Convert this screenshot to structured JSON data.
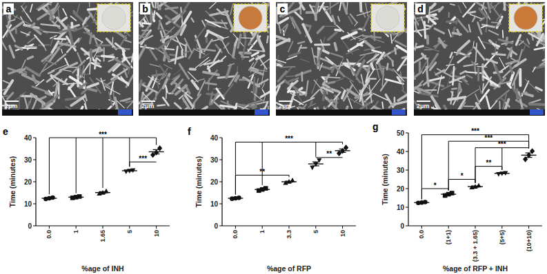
{
  "images": [
    {
      "panel": "a",
      "scale_bar": "2μm",
      "inset_color": "#dcdcd6"
    },
    {
      "panel": "b",
      "scale_bar": "2μm",
      "inset_color": "#c87a3c"
    },
    {
      "panel": "c",
      "scale_bar": "2μm",
      "inset_color": "#dcdcd6"
    },
    {
      "panel": "d",
      "scale_bar": "2μm",
      "inset_color": "#c97a38"
    }
  ],
  "chart_data": [
    {
      "panel": "e",
      "type": "scatter",
      "x_label": "%age of INH",
      "y_label": "Time (minutes)",
      "categories": [
        "0.0",
        "1",
        "1.65",
        "5",
        "10"
      ],
      "points": [
        [
          12.2,
          12.5,
          12.8
        ],
        [
          12.7,
          13.0,
          13.3
        ],
        [
          14.6,
          15.0,
          15.7
        ],
        [
          24.7,
          25.0,
          25.3
        ],
        [
          32.2,
          33.3,
          35.2
        ]
      ],
      "values": [
        12.5,
        13.0,
        15.1,
        25.0,
        33.6
      ],
      "errors": [
        0.2,
        0.2,
        0.4,
        0.2,
        1.0
      ],
      "ylim": [
        0,
        40
      ],
      "yticks": [
        0,
        10,
        20,
        30,
        40
      ],
      "color": "#111111",
      "annotations": [
        {
          "text": "***",
          "indices": [
            0,
            1,
            2,
            3,
            4
          ],
          "y": 40
        },
        {
          "text": "***",
          "indices": [
            3,
            4
          ],
          "y": 29
        }
      ]
    },
    {
      "panel": "f",
      "type": "scatter",
      "x_label": "%age of RFP",
      "y_label": "Time (minutes)",
      "categories": [
        "0.0",
        "1",
        "3.3",
        "5",
        "10"
      ],
      "points": [
        [
          12.3,
          12.5,
          12.7
        ],
        [
          16.0,
          16.5,
          17.0
        ],
        [
          19.4,
          20.0,
          20.6
        ],
        [
          26.5,
          28.0,
          29.8
        ],
        [
          32.9,
          34.0,
          35.5
        ]
      ],
      "values": [
        12.5,
        16.5,
        20.0,
        28.1,
        34.1
      ],
      "errors": [
        0.2,
        0.3,
        0.3,
        0.9,
        0.8
      ],
      "ylim": [
        0,
        40
      ],
      "yticks": [
        0,
        10,
        20,
        30,
        40
      ],
      "color": "#111111",
      "annotations": [
        {
          "text": "**",
          "indices": [
            0,
            2
          ],
          "y": 23
        },
        {
          "text": "***",
          "indices": [
            0,
            1,
            3,
            4
          ],
          "y": 38
        },
        {
          "text": "**",
          "indices": [
            3,
            4
          ],
          "y": 31
        }
      ]
    },
    {
      "panel": "g",
      "type": "scatter",
      "x_label": "%age of RFP + INH",
      "y_label": "Time (minutes)",
      "categories": [
        "0.0",
        "(1+1)",
        "(3.3 + 1.65)",
        "(5+5)",
        "(10+10)"
      ],
      "points": [
        [
          12.3,
          12.5,
          12.8
        ],
        [
          16.3,
          17.0,
          17.6
        ],
        [
          20.6,
          21.0,
          21.6
        ],
        [
          27.9,
          28.2,
          28.5
        ],
        [
          35.8,
          38.0,
          40.2
        ]
      ],
      "values": [
        12.5,
        17.0,
        21.1,
        28.2,
        38.0
      ],
      "errors": [
        0.2,
        0.4,
        0.3,
        0.15,
        1.2
      ],
      "ylim": [
        0,
        50
      ],
      "yticks": [
        0,
        10,
        20,
        30,
        40,
        50
      ],
      "color": "#111111",
      "annotations": [
        {
          "text": "*",
          "indices": [
            0,
            1
          ],
          "y": 20
        },
        {
          "text": "*",
          "indices": [
            1,
            2
          ],
          "y": 25
        },
        {
          "text": "**",
          "indices": [
            2,
            3
          ],
          "y": 32
        },
        {
          "text": "***",
          "indices": [
            2,
            3,
            4
          ],
          "y": 42
        },
        {
          "text": "***",
          "indices": [
            1,
            4
          ],
          "y": 45.5
        },
        {
          "text": "***",
          "indices": [
            0,
            4
          ],
          "y": 49
        }
      ]
    }
  ]
}
